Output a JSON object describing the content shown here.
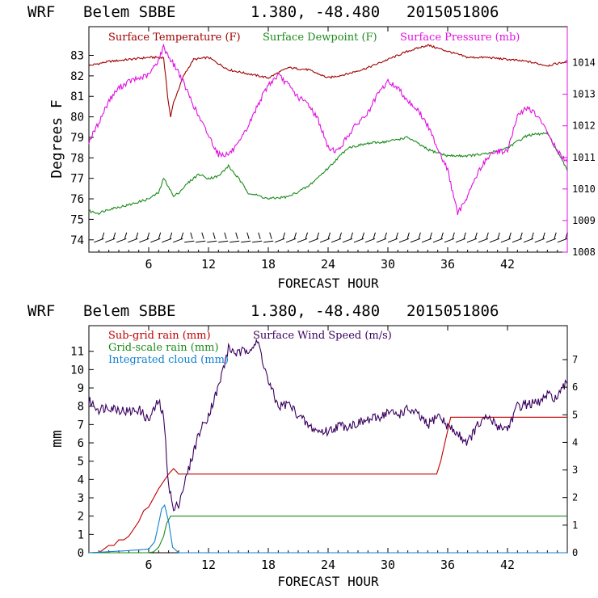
{
  "colors": {
    "temp": "#a00000",
    "dew": "#1a8a1a",
    "pres": "#e010e0",
    "wind": "#3a0060",
    "rain_sub": "#c00000",
    "rain_grid": "#1a8a1a",
    "cloud": "#1080d0",
    "axis": "#000000",
    "axis_right_top": "#e010e0"
  },
  "chart_data": [
    {
      "type": "line",
      "header": {
        "model": "WRF",
        "station": "Belem SBBE",
        "coords": "1.380, -48.480",
        "init": "2015051806"
      },
      "xlabel": "FORECAST HOUR",
      "ylabel": "Degrees F",
      "xlim": [
        0,
        48
      ],
      "ylim_left": [
        73.4,
        84.4
      ],
      "ylim_right": [
        1008,
        1015.14
      ],
      "x_ticks": [
        "6",
        "12",
        "18",
        "24",
        "30",
        "36",
        "42"
      ],
      "y_ticks_left": [
        "74",
        "75",
        "76",
        "77",
        "78",
        "79",
        "80",
        "81",
        "82",
        "83"
      ],
      "y_ticks_right": [
        "1008",
        "1009",
        "1010",
        "1011",
        "1012",
        "1013",
        "1014"
      ],
      "legend": [
        "Surface Temperature (F)",
        "Surface Dewpoint (F)",
        "Surface Pressure (mb)"
      ],
      "series": [
        {
          "name": "Surface Temperature (F)",
          "axis": "left",
          "x": [
            0,
            2,
            4,
            6,
            7.5,
            7.9,
            8.2,
            8.5,
            9.5,
            10.5,
            12,
            14,
            16,
            18,
            20,
            22,
            24,
            26,
            28,
            30,
            32,
            34,
            36,
            38,
            40,
            42,
            44,
            46,
            48
          ],
          "y": [
            82.5,
            82.7,
            82.8,
            82.9,
            82.9,
            81.0,
            80.0,
            80.7,
            82.0,
            82.8,
            82.9,
            82.3,
            82.1,
            81.9,
            82.4,
            82.3,
            81.9,
            82.1,
            82.4,
            82.8,
            83.2,
            83.5,
            83.2,
            82.9,
            82.9,
            82.8,
            82.7,
            82.5,
            82.7
          ]
        },
        {
          "name": "Surface Dewpoint (F)",
          "axis": "left",
          "x": [
            0,
            1,
            2,
            4,
            6,
            7,
            7.5,
            8,
            8.5,
            9,
            10,
            11,
            12,
            13,
            14,
            15,
            16,
            18,
            20,
            22,
            24,
            26,
            28,
            30,
            32,
            34,
            36,
            38,
            40,
            42,
            44,
            46,
            48
          ],
          "y": [
            75.4,
            75.3,
            75.5,
            75.7,
            76.0,
            76.3,
            77.0,
            76.6,
            76.1,
            76.3,
            76.8,
            77.2,
            77.0,
            77.1,
            77.6,
            77.0,
            76.3,
            76.0,
            76.1,
            76.6,
            77.5,
            78.5,
            78.7,
            78.8,
            79.0,
            78.4,
            78.1,
            78.1,
            78.2,
            78.5,
            79.1,
            79.2,
            77.4
          ]
        },
        {
          "name": "Surface Pressure (mb)",
          "axis": "right",
          "x": [
            0,
            1,
            2,
            3,
            4,
            5,
            6,
            7,
            7.5,
            8,
            9,
            10,
            11,
            12,
            13,
            14,
            15,
            16,
            17,
            18,
            19,
            20,
            21,
            22,
            23,
            24,
            25,
            26,
            27,
            28,
            29,
            30,
            31,
            32,
            33,
            34,
            35,
            36,
            37,
            38,
            39,
            40,
            41,
            42,
            43,
            44,
            45,
            46,
            47,
            48
          ],
          "y": [
            1011.5,
            1012.1,
            1012.8,
            1013.2,
            1013.4,
            1013.5,
            1013.6,
            1014.1,
            1014.5,
            1014.2,
            1013.7,
            1013.0,
            1012.3,
            1011.7,
            1011.1,
            1011.1,
            1011.4,
            1012.0,
            1012.7,
            1013.3,
            1013.6,
            1013.3,
            1012.9,
            1012.7,
            1012.2,
            1011.3,
            1011.2,
            1011.7,
            1012.1,
            1012.4,
            1013.0,
            1013.4,
            1013.2,
            1012.8,
            1012.5,
            1012.0,
            1011.3,
            1010.6,
            1009.2,
            1009.8,
            1010.5,
            1011.0,
            1011.2,
            1011.2,
            1012.3,
            1012.6,
            1012.3,
            1011.8,
            1011.2,
            1010.8
          ]
        }
      ],
      "wind_barbs": {
        "y": 74,
        "x_start": 1,
        "x_end": 47.5,
        "count": 42
      }
    },
    {
      "type": "line",
      "header": {
        "model": "WRF",
        "station": "Belem SBBE",
        "coords": "1.380, -48.480",
        "init": "2015051806"
      },
      "xlabel": "FORECAST HOUR",
      "ylabel": "mm",
      "xlim": [
        0,
        48
      ],
      "ylim_left": [
        0,
        12.4
      ],
      "ylim_right": [
        0,
        8.23
      ],
      "x_ticks": [
        "6",
        "12",
        "18",
        "24",
        "30",
        "36",
        "42"
      ],
      "y_ticks_left": [
        "0",
        "1",
        "2",
        "3",
        "4",
        "5",
        "6",
        "7",
        "8",
        "9",
        "10",
        "11"
      ],
      "y_ticks_right": [
        "0",
        "1",
        "2",
        "3",
        "4",
        "5",
        "6",
        "7"
      ],
      "legend": [
        "Sub-grid rain (mm)",
        "Surface Wind Speed (m/s)",
        "Grid-scale rain (mm)",
        "Integrated cloud (mm)"
      ],
      "series": [
        {
          "name": "Sub-grid rain (mm)",
          "axis": "left",
          "x": [
            0,
            1,
            1.5,
            2,
            2.5,
            3,
            3.5,
            4,
            4.5,
            5,
            5.5,
            6,
            6.5,
            7,
            7.5,
            8,
            8.5,
            9,
            34.9,
            35.3,
            36.3,
            48
          ],
          "y": [
            0,
            0,
            0.2,
            0.4,
            0.4,
            0.7,
            0.7,
            0.9,
            1.3,
            1.7,
            2.3,
            2.5,
            3.0,
            3.5,
            3.9,
            4.3,
            4.6,
            4.3,
            4.3,
            5.0,
            7.4,
            7.4
          ]
        },
        {
          "name": "Surface Wind Speed (m/s)",
          "axis": "right",
          "x": [
            0,
            1,
            2,
            3,
            4,
            5,
            6,
            7,
            7.5,
            8,
            8.5,
            9,
            10,
            11,
            12,
            13,
            14,
            15,
            16,
            17,
            18,
            19,
            20,
            21,
            22,
            23,
            24,
            25,
            26,
            27,
            28,
            29,
            30,
            31,
            32,
            33,
            34,
            35,
            36,
            37,
            38,
            39,
            40,
            41,
            42,
            43,
            44,
            45,
            46,
            47,
            48
          ],
          "y": [
            5.5,
            5.2,
            5.3,
            5.2,
            5.1,
            5.2,
            4.8,
            5.5,
            4.9,
            2.5,
            1.5,
            1.8,
            3.0,
            4.3,
            5.0,
            6.0,
            7.4,
            7.2,
            7.4,
            7.6,
            6.2,
            5.3,
            5.4,
            5.0,
            4.6,
            4.4,
            4.4,
            4.6,
            4.6,
            4.7,
            4.8,
            4.9,
            5.1,
            5.0,
            5.2,
            5.0,
            4.6,
            5.0,
            4.6,
            4.3,
            4.0,
            4.6,
            4.9,
            4.6,
            4.5,
            5.3,
            5.4,
            5.4,
            5.7,
            5.6,
            6.2
          ]
        },
        {
          "name": "Grid-scale rain (mm)",
          "axis": "left",
          "x": [
            0,
            4,
            6,
            6.5,
            7,
            7.5,
            7.8,
            8.2,
            48
          ],
          "y": [
            0,
            0,
            0,
            0.05,
            0.3,
            0.9,
            1.6,
            2.0,
            2.0
          ]
        },
        {
          "name": "Integrated cloud (mm)",
          "axis": "left",
          "x": [
            0,
            3.5,
            6,
            6.6,
            7,
            7.3,
            7.6,
            8.0,
            8.4,
            9,
            48
          ],
          "y": [
            0,
            0.1,
            0.2,
            0.6,
            1.6,
            2.4,
            2.6,
            1.7,
            0.3,
            0,
            0
          ]
        }
      ]
    }
  ]
}
